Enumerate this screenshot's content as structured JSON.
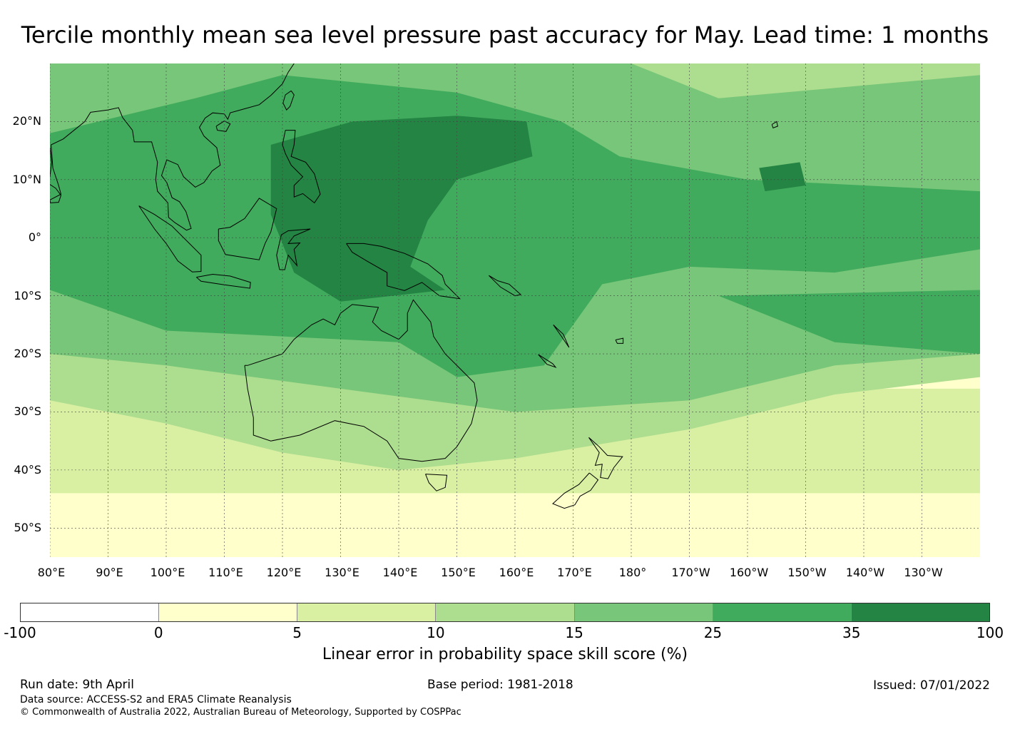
{
  "title": "Tercile monthly mean sea level pressure past accuracy for May. Lead time: 1 months",
  "map": {
    "lat_labels": [
      "20°N",
      "10°N",
      "0°",
      "10°S",
      "20°S",
      "30°S",
      "40°S",
      "50°S"
    ],
    "lat_values": [
      20,
      10,
      0,
      -10,
      -20,
      -30,
      -40,
      -50
    ],
    "lon_labels": [
      "80°E",
      "90°E",
      "100°E",
      "110°E",
      "120°E",
      "130°E",
      "140°E",
      "150°E",
      "160°E",
      "170°E",
      "180°",
      "170°W",
      "160°W",
      "150°W",
      "140°W",
      "130°W"
    ],
    "lon_values": [
      80,
      90,
      100,
      110,
      120,
      130,
      140,
      150,
      160,
      170,
      180,
      190,
      200,
      210,
      220,
      230
    ],
    "extent": {
      "lon_min": 80,
      "lon_max": 240,
      "lat_min": -55,
      "lat_max": 30
    },
    "gridlines": true
  },
  "colorbar": {
    "ticks": [
      "-100",
      "0",
      "5",
      "10",
      "15",
      "25",
      "35",
      "100"
    ],
    "colors": [
      "#ffffff",
      "#ffffcc",
      "#d9f0a3",
      "#addd8e",
      "#78c679",
      "#41ab5d",
      "#238443"
    ],
    "label": "Linear error in probability space skill score (%)"
  },
  "footer": {
    "run_date": "Run date: 9th April",
    "base_period": "Base period: 1981-2018",
    "issued": "Issued: 07/01/2022",
    "data_source": "Data source: ACCESS-S2 and ERA5 Climate Reanalysis",
    "copyright": "© Commonwealth of Australia 2022, Australian Bureau of Meteorology, Supported by COSPPac"
  }
}
